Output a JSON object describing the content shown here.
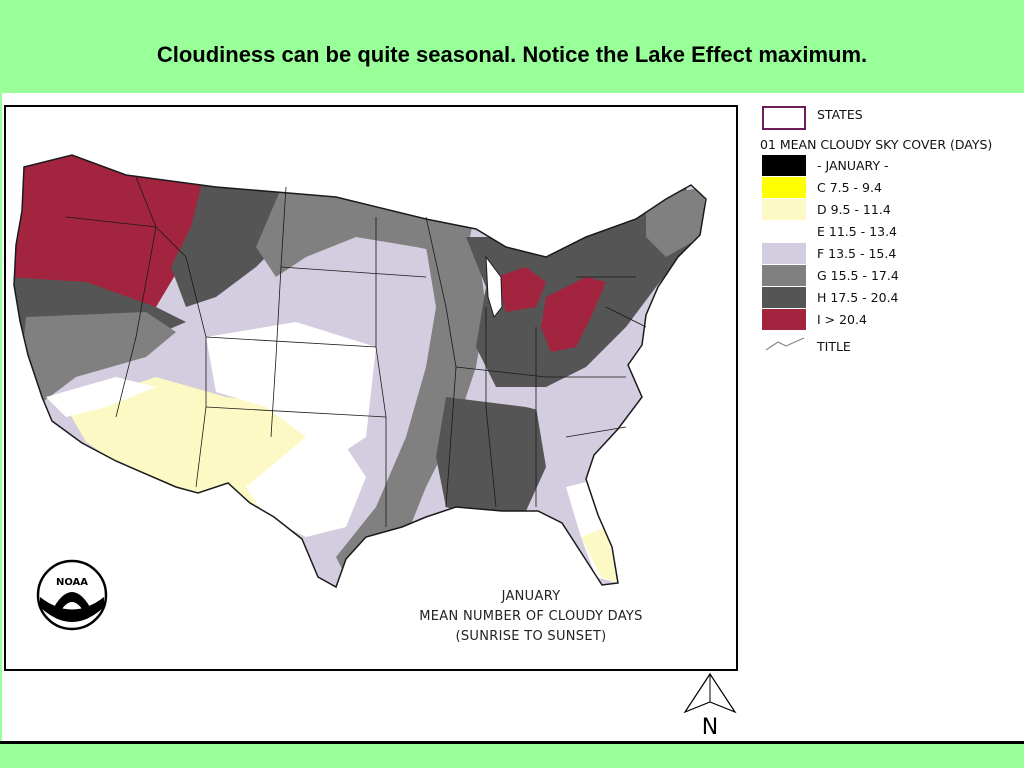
{
  "slide": {
    "title": "Cloudiness can be quite seasonal. Notice the Lake Effect maximum."
  },
  "map": {
    "caption_lines": [
      "JANUARY",
      "MEAN NUMBER OF CLOUDY DAYS",
      "(SUNRISE TO SUNSET)"
    ],
    "logo_text": "NOAA",
    "north_label": "N"
  },
  "legend": {
    "states_label": "STATES",
    "header": "01 MEAN CLOUDY SKY COVER (DAYS)",
    "items": [
      {
        "label": "- JANUARY -",
        "color": "#000000"
      },
      {
        "label": "C 7.5 - 9.4",
        "color": "#ffff00"
      },
      {
        "label": "D 9.5 - 11.4",
        "color": "#fdf9c4"
      },
      {
        "label": "E 11.5 - 13.4",
        "color": "#ffffff"
      },
      {
        "label": "F 13.5 - 15.4",
        "color": "#d3cddf"
      },
      {
        "label": "G 15.5 - 17.4",
        "color": "#808080"
      },
      {
        "label": "H 17.5 - 20.4",
        "color": "#555555"
      },
      {
        "label": "I > 20.4",
        "color": "#a3243f"
      }
    ],
    "title_label": "TITLE",
    "states_outline_color": "#6b1e5a"
  }
}
